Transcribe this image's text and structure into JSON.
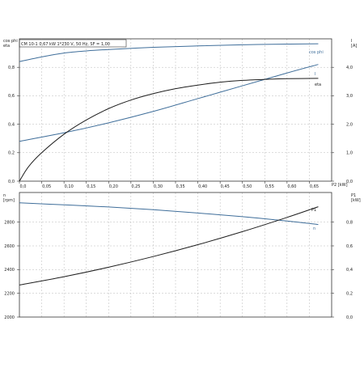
{
  "chart_data": [
    {
      "type": "line",
      "title": "CM 10-1   0,67 kW   1*230 V, 50 Hz, SF = 1,00",
      "xlabel": "P2 [kW]",
      "x_ticks": [
        "0,0",
        "0,05",
        "0,10",
        "0,15",
        "0,20",
        "0,25",
        "0,30",
        "0,35",
        "0,40",
        "0,45",
        "0,50",
        "0,55",
        "0,60",
        "0,65"
      ],
      "xlim": [
        0,
        0.7
      ],
      "left_axis": {
        "label_lines": [
          "cos phi",
          "eta"
        ],
        "ylim": [
          0,
          1.0
        ],
        "ticks": [
          "0,0",
          "0,2",
          "0,4",
          "0,6",
          "0,8"
        ],
        "tick_values": [
          0,
          0.2,
          0.4,
          0.6,
          0.8
        ]
      },
      "right_axis": {
        "label_lines": [
          "I",
          "[A]"
        ],
        "ylim": [
          0,
          5.0
        ],
        "ticks": [
          "0,0",
          "1,0",
          "2,0",
          "3,0",
          "4,0"
        ],
        "tick_values": [
          0,
          1,
          2,
          3,
          4
        ]
      },
      "series": [
        {
          "name": "cos phi",
          "axis": "left",
          "color": "#3f6e9a",
          "x": [
            0,
            0.05,
            0.1,
            0.15,
            0.2,
            0.3,
            0.4,
            0.5,
            0.6,
            0.67
          ],
          "y": [
            0.84,
            0.873,
            0.9,
            0.915,
            0.925,
            0.94,
            0.95,
            0.958,
            0.963,
            0.965
          ]
        },
        {
          "name": "I",
          "axis": "right",
          "color": "#3f6e9a",
          "x": [
            0,
            0.1,
            0.2,
            0.3,
            0.4,
            0.5,
            0.6,
            0.67
          ],
          "y": [
            1.4,
            1.7,
            2.05,
            2.45,
            2.9,
            3.35,
            3.8,
            4.1
          ]
        },
        {
          "name": "eta",
          "axis": "left",
          "color": "#1e1e1e",
          "x": [
            0,
            0.02,
            0.05,
            0.1,
            0.15,
            0.2,
            0.25,
            0.3,
            0.35,
            0.4,
            0.45,
            0.5,
            0.55,
            0.6,
            0.67
          ],
          "y": [
            0,
            0.1,
            0.2,
            0.33,
            0.43,
            0.51,
            0.57,
            0.615,
            0.65,
            0.675,
            0.695,
            0.708,
            0.715,
            0.72,
            0.722
          ]
        }
      ],
      "grid": true
    },
    {
      "type": "line",
      "x_ticks": [],
      "xlim": [
        0,
        0.7
      ],
      "left_axis": {
        "label_lines": [
          "n",
          "[rpm]"
        ],
        "ylim": [
          2000,
          3050
        ],
        "ticks": [
          "2000",
          "2200",
          "2400",
          "2600",
          "2800"
        ],
        "tick_values": [
          2000,
          2200,
          2400,
          2600,
          2800
        ]
      },
      "right_axis": {
        "label_lines": [
          "P1",
          "[kW]"
        ],
        "ylim": [
          0,
          1.05
        ],
        "ticks": [
          "0,0",
          "0,2",
          "0,4",
          "0,6",
          "0,8"
        ],
        "tick_values": [
          0,
          0.2,
          0.4,
          0.6,
          0.8
        ]
      },
      "series": [
        {
          "name": "n",
          "axis": "left",
          "color": "#3f6e9a",
          "x": [
            0,
            0.1,
            0.2,
            0.3,
            0.4,
            0.5,
            0.6,
            0.67
          ],
          "y": [
            2963,
            2946,
            2928,
            2905,
            2877,
            2846,
            2810,
            2780
          ]
        },
        {
          "name": "P1",
          "axis": "right",
          "color": "#1e1e1e",
          "x": [
            0,
            0.1,
            0.2,
            0.3,
            0.4,
            0.5,
            0.6,
            0.67
          ],
          "y": [
            0.27,
            0.34,
            0.42,
            0.51,
            0.61,
            0.72,
            0.84,
            0.93
          ]
        }
      ],
      "grid": true
    }
  ]
}
